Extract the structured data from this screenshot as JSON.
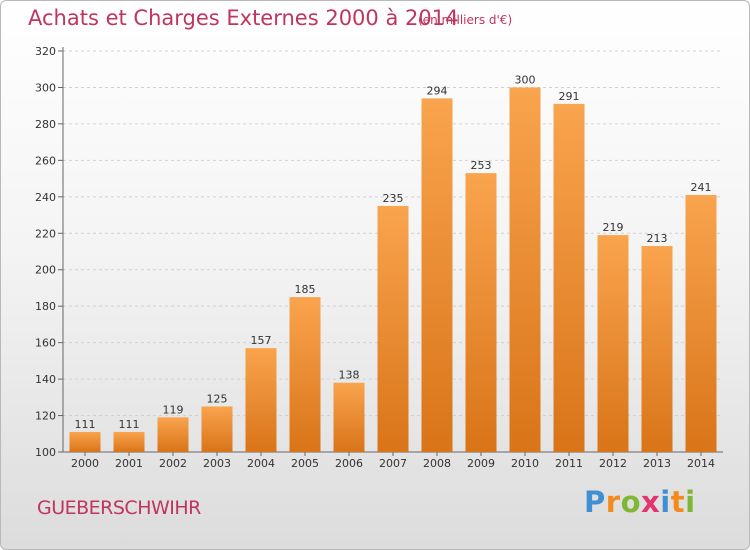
{
  "header": {
    "title": "Achats et Charges Externes 2000 à 2014",
    "subtitle": "(en milliers d'€)"
  },
  "footer": {
    "town": "GUEBERSCHWIHR",
    "logo_letters": [
      {
        "ch": "P",
        "color": "#3f8fd2"
      },
      {
        "ch": "r",
        "color": "#f28a1d"
      },
      {
        "ch": "o",
        "color": "#7fb636"
      },
      {
        "ch": "x",
        "color": "#e0356f"
      },
      {
        "ch": "i",
        "color": "#3f8fd2"
      },
      {
        "ch": "t",
        "color": "#f28a1d"
      },
      {
        "ch": "i",
        "color": "#7fb636"
      }
    ]
  },
  "chart_data": {
    "type": "bar",
    "categories": [
      "2000",
      "2001",
      "2002",
      "2003",
      "2004",
      "2005",
      "2006",
      "2007",
      "2008",
      "2009",
      "2010",
      "2011",
      "2012",
      "2013",
      "2014"
    ],
    "values": [
      111,
      111,
      119,
      125,
      157,
      185,
      138,
      235,
      294,
      253,
      300,
      291,
      219,
      213,
      241
    ],
    "ylim": [
      100,
      320
    ],
    "yticks": [
      100,
      120,
      140,
      160,
      180,
      200,
      220,
      240,
      260,
      280,
      300,
      320
    ],
    "grid": true,
    "bar_color_light": "#f9a44e",
    "bar_color_dark": "#d97418",
    "title_color": "#c0355e"
  }
}
